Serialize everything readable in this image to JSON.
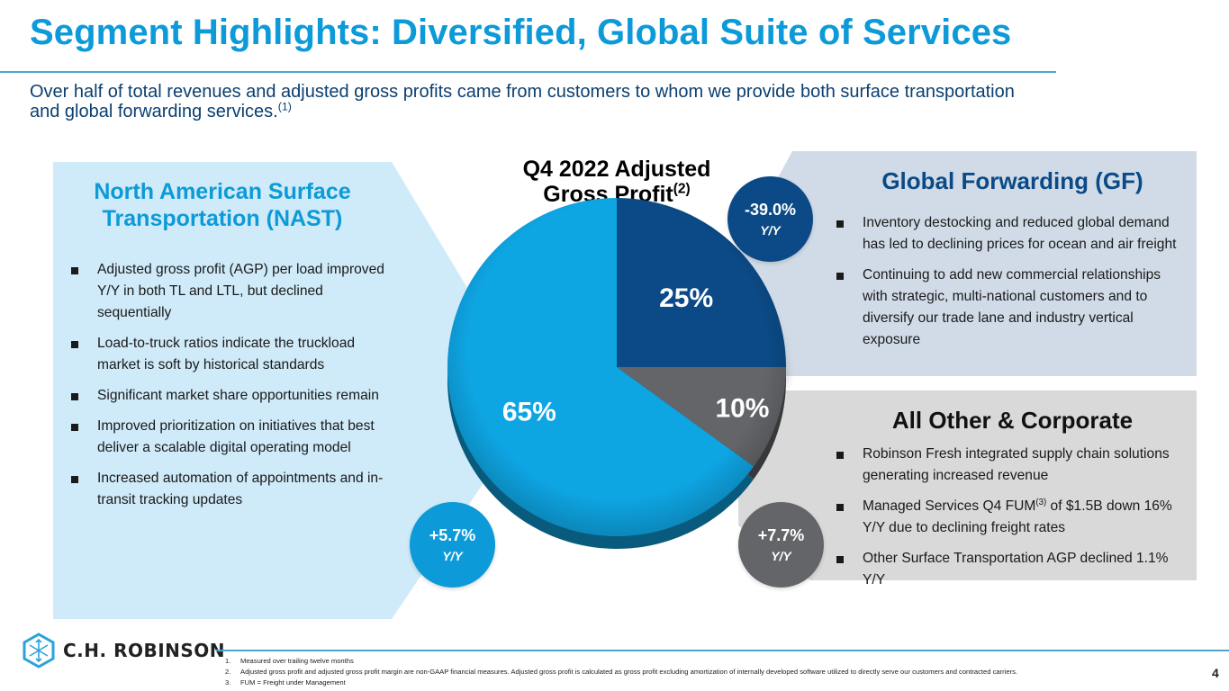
{
  "slide": {
    "title": "Segment Highlights: Diversified, Global Suite of Services",
    "subtitle": "Over half of total revenues and adjusted gross profits came from customers to whom we provide both surface transportation and global forwarding services.",
    "subtitle_footnote": "(1)",
    "page_number": "4"
  },
  "segments": {
    "nast": {
      "heading_line1": "North American Surface",
      "heading_line2": "Transportation (NAST)",
      "color": "#0c9ad8",
      "bullets": [
        "Adjusted gross profit (AGP) per load improved Y/Y in both TL and LTL, but declined sequentially",
        "Load-to-truck ratios indicate the truckload market is soft by historical standards",
        "Significant market share opportunities remain",
        "Improved prioritization on initiatives that best deliver a scalable digital operating model",
        "Increased automation of appointments and in-transit tracking updates"
      ],
      "badge": {
        "value": "+5.7%",
        "label": "Y/Y"
      }
    },
    "gf": {
      "heading": "Global Forwarding (GF)",
      "color": "#0b4a86",
      "bullets": [
        "Inventory destocking and reduced global demand has led to declining prices for ocean and air freight",
        "Continuing to add new commercial relationships with strategic, multi-national customers and to diversify our trade lane and industry vertical exposure"
      ],
      "badge": {
        "value": "-39.0%",
        "label": "Y/Y"
      }
    },
    "other": {
      "heading": "All Other & Corporate",
      "color": "#636569",
      "bullets": [
        {
          "before": "Robinson Fresh integrated supply chain solutions generating increased revenue",
          "sup": "",
          "after": ""
        },
        {
          "before": "Managed Services Q4 FUM",
          "sup": "(3)",
          "after": " of $1.5B down 16% Y/Y due to declining freight rates"
        },
        {
          "before": "Other Surface Transportation AGP declined 1.1% Y/Y",
          "sup": "",
          "after": ""
        }
      ],
      "badge": {
        "value": "+7.7%",
        "label": "Y/Y"
      }
    }
  },
  "chart_data": {
    "type": "pie",
    "title": "Q4 2022 Adjusted Gross Profit",
    "title_line1": "Q4 2022 Adjusted",
    "title_line2": "Gross Profit",
    "title_footnote": "(2)",
    "start": "12 o'clock, clockwise",
    "slices": [
      {
        "name": "Global Forwarding (GF)",
        "value": 25,
        "label": "25%",
        "color": "#0b4a86"
      },
      {
        "name": "All Other & Corporate",
        "value": 10,
        "label": "10%",
        "color": "#636569"
      },
      {
        "name": "North American Surface Transportation (NAST)",
        "value": 65,
        "label": "65%",
        "color": "#0ea5e3"
      }
    ]
  },
  "footer": {
    "logo_text": "C.H. ROBINSON",
    "footnotes": [
      {
        "num": "1.",
        "text": "Measured over trailing twelve months"
      },
      {
        "num": "2.",
        "text": "Adjusted gross profit and adjusted gross profit margin are non-GAAP financial measures. Adjusted gross profit is calculated as gross profit excluding amortization of internally developed software utilized to directly serve our customers and contracted carriers."
      },
      {
        "num": "3.",
        "text": "FUM = Freight under Management"
      }
    ]
  }
}
